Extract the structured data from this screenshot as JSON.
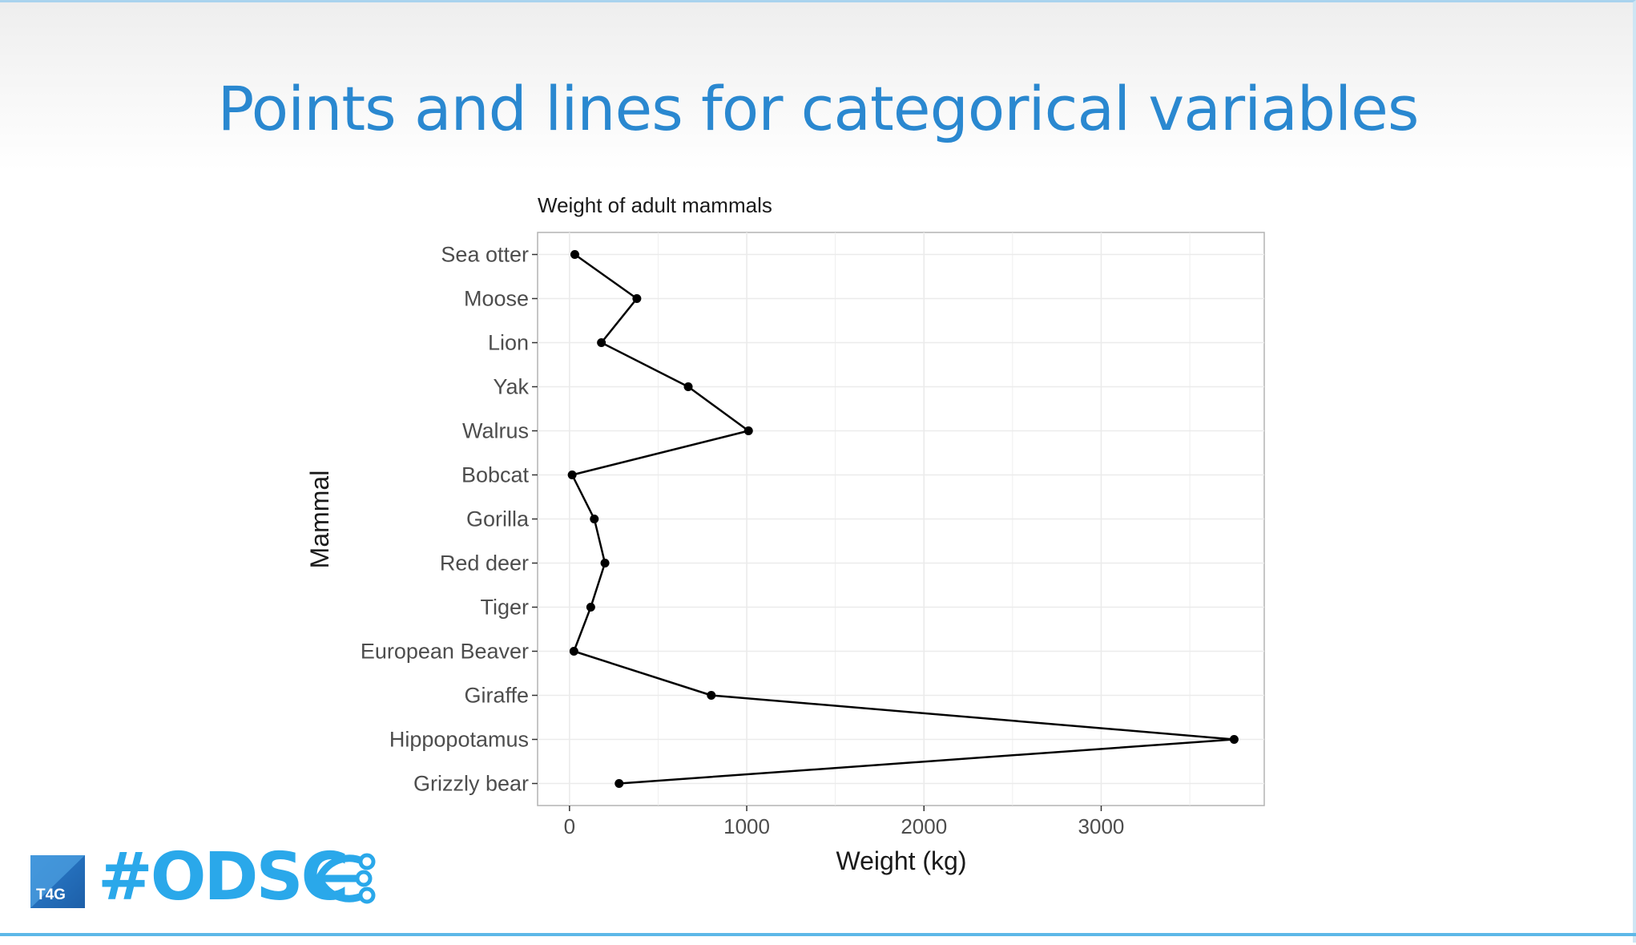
{
  "slide": {
    "title": "Points and lines for categorical variables",
    "hashtag": "#ODSC",
    "logo_text": "T4G"
  },
  "colors": {
    "title": "#2a88d0",
    "accent": "#2aa8ea",
    "rule": "#5db8e8",
    "line": "#000000"
  },
  "icons": {
    "brand": "network-nodes-icon"
  },
  "chart_data": {
    "type": "line",
    "orientation": "horizontal",
    "title": "Weight of adult mammals",
    "xlabel": "Weight (kg)",
    "ylabel": "Mammal",
    "xlim": [
      -180,
      3920
    ],
    "xticks": [
      0,
      1000,
      2000,
      3000
    ],
    "categories": [
      "Sea otter",
      "Moose",
      "Lion",
      "Yak",
      "Walrus",
      "Bobcat",
      "Gorilla",
      "Red deer",
      "Tiger",
      "European Beaver",
      "Giraffe",
      "Hippopotamus",
      "Grizzly bear"
    ],
    "values": [
      30,
      380,
      180,
      670,
      1010,
      15,
      140,
      200,
      120,
      25,
      800,
      3750,
      280
    ],
    "markers": true,
    "grid": true
  }
}
